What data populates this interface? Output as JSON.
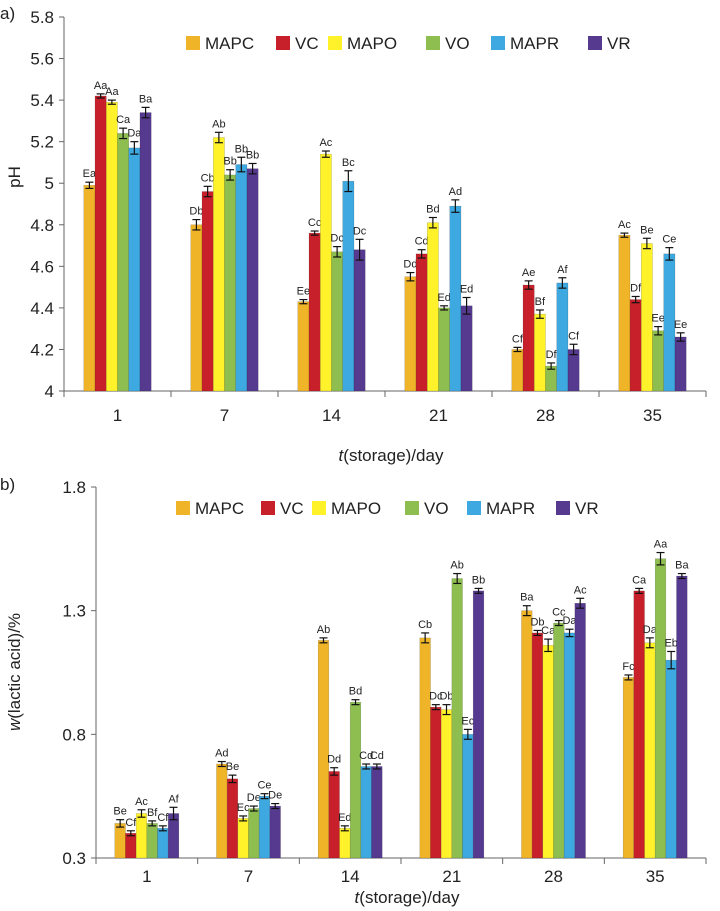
{
  "chart_data": [
    {
      "panel": "a)",
      "type": "bar",
      "categories": [
        "1",
        "7",
        "14",
        "21",
        "28",
        "35"
      ],
      "xlabel_italic": "t",
      "xlabel_rest": "(storage)/day",
      "ylabel": "pH",
      "ylim": [
        4,
        5.8
      ],
      "yticks": [
        "4",
        "4.2",
        "4.4",
        "4.6",
        "4.8",
        "5",
        "5.2",
        "5.4",
        "5.6",
        "5.8"
      ],
      "legend": [
        "MAPC",
        "VC",
        "MAPO",
        "VO",
        "MAPR",
        "VR"
      ],
      "colors": [
        "#f0b429",
        "#c8202a",
        "#fff22b",
        "#8fbe50",
        "#3ea8e0",
        "#563a90"
      ],
      "series": [
        {
          "name": "MAPC",
          "values": [
            4.99,
            4.8,
            4.43,
            4.55,
            4.2,
            4.75
          ],
          "errors": [
            0.015,
            0.025,
            0.01,
            0.02,
            0.01,
            0.01
          ],
          "labels": [
            "Ea",
            "Db",
            "Ee",
            "Dd",
            "Cf",
            "Ac"
          ]
        },
        {
          "name": "VC",
          "values": [
            5.42,
            4.96,
            4.76,
            4.66,
            4.51,
            4.44
          ],
          "errors": [
            0.01,
            0.025,
            0.01,
            0.02,
            0.02,
            0.015
          ],
          "labels": [
            "Aa",
            "Cb",
            "Cc",
            "Cd",
            "Ae",
            "Df"
          ]
        },
        {
          "name": "MAPO",
          "values": [
            5.39,
            5.22,
            5.14,
            4.81,
            4.37,
            4.71
          ],
          "errors": [
            0.01,
            0.025,
            0.015,
            0.025,
            0.02,
            0.025
          ],
          "labels": [
            "Aa",
            "Ab",
            "Ac",
            "Bd",
            "Bf",
            "Be"
          ]
        },
        {
          "name": "VO",
          "values": [
            5.24,
            5.04,
            4.67,
            4.4,
            4.12,
            4.29
          ],
          "errors": [
            0.025,
            0.025,
            0.025,
            0.01,
            0.015,
            0.02
          ],
          "labels": [
            "Ca",
            "Bb",
            "Dc",
            "Ed",
            "Df",
            "Ee"
          ]
        },
        {
          "name": "MAPR",
          "values": [
            5.17,
            5.09,
            5.01,
            4.89,
            4.52,
            4.66
          ],
          "errors": [
            0.03,
            0.035,
            0.05,
            0.03,
            0.025,
            0.03
          ],
          "labels": [
            "Da",
            "Bb",
            "Bc",
            "Ad",
            "Af",
            "Ce"
          ]
        },
        {
          "name": "VR",
          "values": [
            5.34,
            5.07,
            4.68,
            4.41,
            4.2,
            4.26
          ],
          "errors": [
            0.025,
            0.025,
            0.05,
            0.04,
            0.025,
            0.02
          ],
          "labels": [
            "Ba",
            "Bb",
            "Dc",
            "Ed",
            "Cf",
            "Ee"
          ]
        }
      ]
    },
    {
      "panel": "b)",
      "type": "bar",
      "categories": [
        "1",
        "7",
        "14",
        "21",
        "28",
        "35"
      ],
      "xlabel_italic": "t",
      "xlabel_rest": "(storage)/day",
      "ylabel_italic": "w",
      "ylabel_rest": "(lactic acid)/%",
      "ylim": [
        0.3,
        1.8
      ],
      "yticks": [
        "0.3",
        "0.8",
        "1.3",
        "1.8"
      ],
      "legend": [
        "MAPC",
        "VC",
        "MAPO",
        "VO",
        "MAPR",
        "VR"
      ],
      "colors": [
        "#f0b429",
        "#c8202a",
        "#fff22b",
        "#8fbe50",
        "#3ea8e0",
        "#563a90"
      ],
      "series": [
        {
          "name": "MAPC",
          "values": [
            0.44,
            0.68,
            1.18,
            1.19,
            1.3,
            1.03
          ],
          "errors": [
            0.015,
            0.01,
            0.01,
            0.02,
            0.02,
            0.01
          ],
          "labels": [
            "Be",
            "Ad",
            "Ab",
            "Cb",
            "Ba",
            "Fc"
          ]
        },
        {
          "name": "VC",
          "values": [
            0.4,
            0.62,
            0.65,
            0.91,
            1.21,
            1.38
          ],
          "errors": [
            0.01,
            0.015,
            0.015,
            0.01,
            0.01,
            0.01
          ],
          "labels": [
            "Cf",
            "Be",
            "Dd",
            "Dc",
            "Db",
            "Ca"
          ]
        },
        {
          "name": "MAPO",
          "values": [
            0.48,
            0.46,
            0.42,
            0.9,
            1.16,
            1.17
          ],
          "errors": [
            0.015,
            0.01,
            0.01,
            0.02,
            0.025,
            0.02
          ],
          "labels": [
            "Ac",
            "Ec",
            "Ed",
            "Db",
            "Ca",
            "Da"
          ]
        },
        {
          "name": "VO",
          "values": [
            0.44,
            0.5,
            0.93,
            1.43,
            1.25,
            1.51
          ],
          "errors": [
            0.01,
            0.01,
            0.01,
            0.02,
            0.01,
            0.025
          ],
          "labels": [
            "Bf",
            "De",
            "Bd",
            "Ab",
            "Cc",
            "Aa"
          ]
        },
        {
          "name": "MAPR",
          "values": [
            0.42,
            0.55,
            0.67,
            0.8,
            1.21,
            1.1
          ],
          "errors": [
            0.01,
            0.01,
            0.01,
            0.02,
            0.015,
            0.035
          ],
          "labels": [
            "Cf",
            "Ce",
            "Cd",
            "Ec",
            "Da",
            "Eb"
          ]
        },
        {
          "name": "VR",
          "values": [
            0.48,
            0.51,
            0.67,
            1.38,
            1.33,
            1.44
          ],
          "errors": [
            0.025,
            0.01,
            0.01,
            0.01,
            0.02,
            0.01
          ],
          "labels": [
            "Af",
            "De",
            "Cd",
            "Bb",
            "Ac",
            "Ba"
          ]
        }
      ]
    }
  ]
}
